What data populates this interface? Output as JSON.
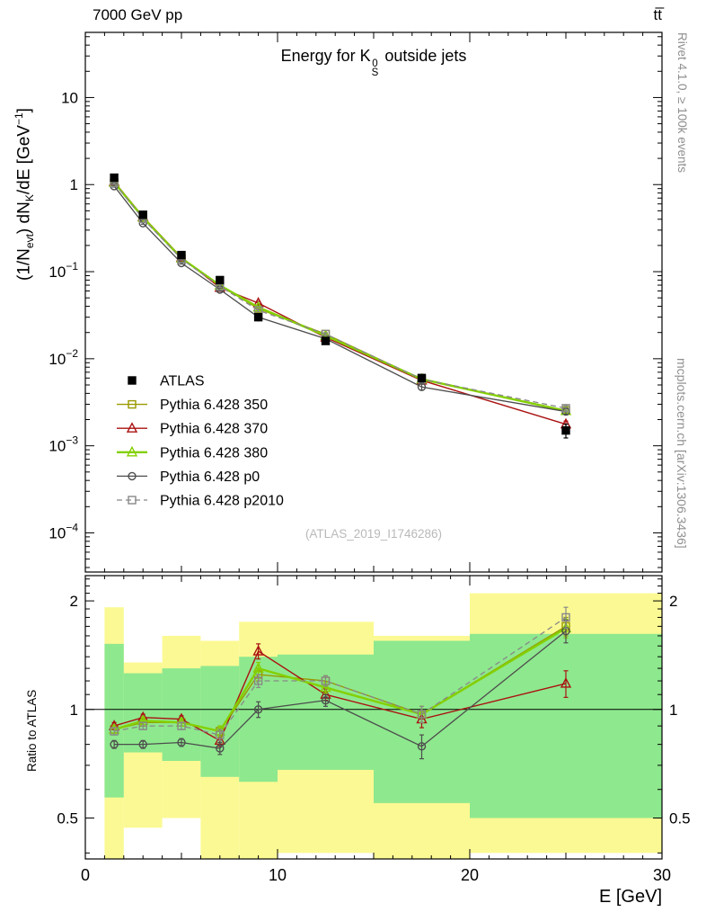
{
  "header": {
    "left": "7000 GeV pp",
    "right": "tt̅"
  },
  "title": {
    "pre": "Energy for K",
    "sup": "0",
    "sub": "S",
    "post": " outside jets"
  },
  "ylabel": {
    "p1": "(1/N",
    "sub1": "evt",
    "p2": ") dN",
    "sub2": "K",
    "p3": "/dE [GeV",
    "sup": "−1",
    "p4": "]"
  },
  "ratio_label": "Ratio to ATLAS",
  "xlabel": "E [GeV]",
  "watermark": "(ATLAS_2019_I1746286)",
  "side_top": "Rivet 4.1.0, ≥ 100k events",
  "side_bottom": "mcplots.cern.ch [arXiv:1306.3436]",
  "chart_data": {
    "type": "line",
    "xlabel": "E [GeV]",
    "xlim": [
      0,
      30
    ],
    "x_ticks": [
      0,
      10,
      20,
      30
    ],
    "x": [
      1.5,
      3,
      5,
      7,
      9,
      12.5,
      17.5,
      25
    ],
    "bin_edges": [
      1,
      2,
      4,
      6,
      8,
      10,
      15,
      20,
      30
    ],
    "main_ylog": true,
    "main_ylim": [
      3.55e-05,
      56
    ],
    "main_yticks": [
      {
        "v": 10,
        "t": "10"
      },
      {
        "v": 1,
        "t": "1"
      },
      {
        "v": 0.1,
        "t": "10",
        "e": "−1"
      },
      {
        "v": 0.01,
        "t": "10",
        "e": "−2"
      },
      {
        "v": 0.001,
        "t": "10",
        "e": "−3"
      },
      {
        "v": 0.0001,
        "t": "10",
        "e": "−4"
      }
    ],
    "ratio_ylog": true,
    "ratio_ylim": [
      0.385,
      2.35
    ],
    "ratio_yticks": [
      {
        "v": 0.5,
        "t": "0.5"
      },
      {
        "v": 1,
        "t": "1"
      },
      {
        "v": 2,
        "t": "2"
      }
    ],
    "ref_line": 1,
    "atlas": {
      "label": "ATLAS",
      "color": "#000000",
      "marker": "square",
      "filled": true,
      "values": [
        1.2,
        0.45,
        0.155,
        0.08,
        0.03,
        0.016,
        0.006,
        0.0015
      ],
      "err_frac": [
        0.06,
        0.04,
        0.04,
        0.05,
        0.06,
        0.06,
        0.1,
        0.18
      ]
    },
    "series": [
      {
        "label": "Pythia 6.428 350",
        "color": "#999900",
        "marker": "square",
        "dash": "",
        "width": 1.4,
        "ratio": [
          0.88,
          0.92,
          0.92,
          0.87,
          1.25,
          1.2,
          0.97,
          1.7
        ],
        "err": [
          0.02,
          0.02,
          0.02,
          0.03,
          0.05,
          0.04,
          0.05,
          0.1
        ]
      },
      {
        "label": "Pythia 6.428 370",
        "color": "#aa1111",
        "marker": "triangle",
        "dash": "",
        "width": 1.4,
        "ratio": [
          0.9,
          0.95,
          0.94,
          0.82,
          1.45,
          1.1,
          0.94,
          1.18
        ],
        "err": [
          0.02,
          0.02,
          0.02,
          0.03,
          0.07,
          0.04,
          0.05,
          0.1
        ]
      },
      {
        "label": "Pythia 6.428 380",
        "color": "#84d000",
        "marker": "triangle",
        "dash": "",
        "width": 2.4,
        "ratio": [
          0.88,
          0.93,
          0.92,
          0.87,
          1.3,
          1.15,
          0.97,
          1.68
        ],
        "err": [
          0.02,
          0.02,
          0.02,
          0.03,
          0.05,
          0.04,
          0.05,
          0.1
        ]
      },
      {
        "label": "Pythia 6.428 p0",
        "color": "#4d4d4d",
        "marker": "circle",
        "dash": "",
        "width": 1.3,
        "ratio": [
          0.8,
          0.8,
          0.81,
          0.78,
          1.0,
          1.06,
          0.79,
          1.65
        ],
        "err": [
          0.02,
          0.02,
          0.02,
          0.03,
          0.05,
          0.04,
          0.06,
          0.12
        ]
      },
      {
        "label": "Pythia 6.428 p2010",
        "color": "#888888",
        "marker": "square",
        "dash": "6,4",
        "width": 1.3,
        "ratio": [
          0.87,
          0.9,
          0.9,
          0.85,
          1.2,
          1.2,
          0.97,
          1.8
        ],
        "err": [
          0.02,
          0.02,
          0.02,
          0.03,
          0.05,
          0.04,
          0.05,
          0.12
        ]
      }
    ],
    "bands": {
      "yellow": "#fbf993",
      "green": "#8ee88e",
      "yellow_lo": [
        0.3,
        0.47,
        0.5,
        0.36,
        0.36,
        0.4,
        0.36,
        0.4
      ],
      "yellow_hi": [
        1.92,
        1.35,
        1.6,
        1.55,
        1.75,
        1.75,
        1.6,
        2.1
      ],
      "green_lo": [
        0.57,
        0.76,
        0.72,
        0.65,
        0.63,
        0.68,
        0.55,
        0.5
      ],
      "green_hi": [
        1.52,
        1.26,
        1.3,
        1.32,
        1.4,
        1.42,
        1.55,
        1.62
      ]
    }
  }
}
